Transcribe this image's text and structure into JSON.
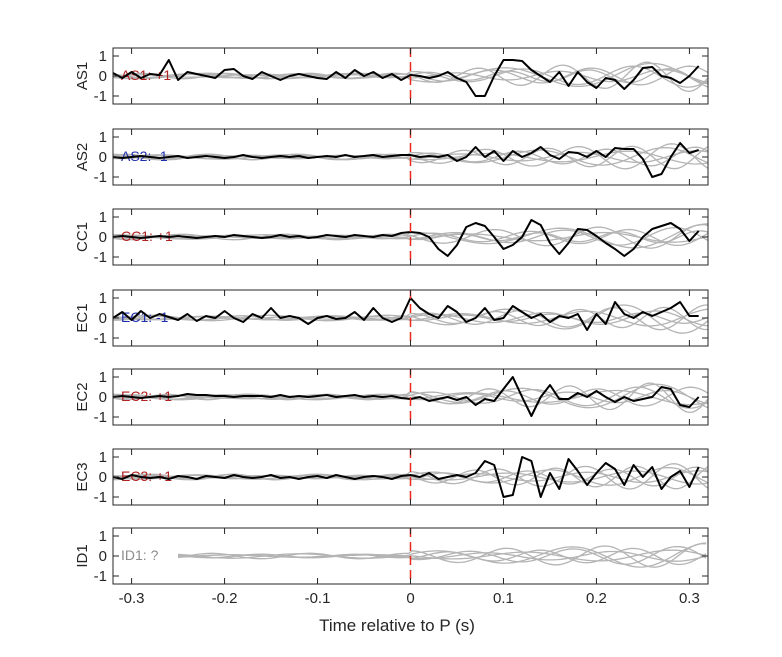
{
  "chart_data": {
    "type": "line",
    "xlabel": "Time relative to P (s)",
    "xlim": [
      -0.32,
      0.32
    ],
    "xticks": [
      -0.3,
      -0.2,
      -0.1,
      0,
      0.1,
      0.2,
      0.3
    ],
    "xtick_labels": [
      "-0.3",
      "-0.2",
      "-0.1",
      "0",
      "0.1",
      "0.2",
      "0.3"
    ],
    "ylim": [
      -1.4,
      1.4
    ],
    "yticks": [
      1,
      0,
      -1
    ],
    "ytick_labels": [
      "1",
      "0",
      "-1"
    ],
    "marker_line": {
      "x": 0,
      "color": "#e8291c",
      "style": "dashed"
    },
    "colors": {
      "highlight": "#000000",
      "background": "#b4b4b4",
      "positive": "#b22222",
      "negative": "#1f2fb0",
      "unknown": "#8c8c8c"
    },
    "panels": [
      {
        "ylabel": "AS1",
        "annotation": "AS1: +1",
        "annotation_color": "#b22222",
        "x": [
          -0.32,
          -0.31,
          -0.3,
          -0.29,
          -0.28,
          -0.27,
          -0.26,
          -0.25,
          -0.24,
          -0.23,
          -0.22,
          -0.21,
          -0.2,
          -0.19,
          -0.18,
          -0.17,
          -0.16,
          -0.15,
          -0.14,
          -0.13,
          -0.12,
          -0.11,
          -0.1,
          -0.09,
          -0.08,
          -0.07,
          -0.06,
          -0.05,
          -0.04,
          -0.03,
          -0.02,
          -0.01,
          0,
          0.01,
          0.02,
          0.03,
          0.04,
          0.05,
          0.06,
          0.07,
          0.08,
          0.09,
          0.1,
          0.11,
          0.12,
          0.13,
          0.14,
          0.15,
          0.16,
          0.17,
          0.18,
          0.19,
          0.2,
          0.21,
          0.22,
          0.23,
          0.24,
          0.25,
          0.26,
          0.27,
          0.28,
          0.29,
          0.3,
          0.31
        ],
        "y": [
          0.15,
          -0.1,
          0.2,
          -0.1,
          0.1,
          0.05,
          0.8,
          -0.2,
          0.2,
          0.1,
          0.0,
          -0.1,
          0.3,
          0.35,
          0.0,
          -0.15,
          0.2,
          0.0,
          -0.2,
          0.0,
          0.1,
          0.0,
          -0.1,
          -0.15,
          0.2,
          -0.1,
          0.3,
          0.0,
          0.2,
          -0.1,
          0.1,
          -0.2,
          0.05,
          0.0,
          -0.1,
          0.0,
          0.2,
          -0.1,
          -0.3,
          -1.0,
          -1.0,
          0.0,
          0.8,
          0.8,
          0.75,
          0.3,
          0.0,
          -0.3,
          0.2,
          -0.5,
          0.2,
          -0.3,
          -0.6,
          -0.1,
          -0.2,
          -0.65,
          -0.2,
          0.4,
          0.45,
          0.0,
          -0.1,
          -0.35,
          0.0,
          0.5
        ]
      },
      {
        "ylabel": "AS2",
        "annotation": "AS2: -1",
        "annotation_color": "#1f2fb0",
        "x": [
          -0.32,
          -0.31,
          -0.3,
          -0.29,
          -0.28,
          -0.27,
          -0.26,
          -0.25,
          -0.24,
          -0.23,
          -0.22,
          -0.21,
          -0.2,
          -0.19,
          -0.18,
          -0.17,
          -0.16,
          -0.15,
          -0.14,
          -0.13,
          -0.12,
          -0.11,
          -0.1,
          -0.09,
          -0.08,
          -0.07,
          -0.06,
          -0.05,
          -0.04,
          -0.03,
          -0.02,
          -0.01,
          0,
          0.01,
          0.02,
          0.03,
          0.04,
          0.05,
          0.06,
          0.07,
          0.08,
          0.09,
          0.1,
          0.11,
          0.12,
          0.13,
          0.14,
          0.15,
          0.16,
          0.17,
          0.18,
          0.19,
          0.2,
          0.21,
          0.22,
          0.23,
          0.24,
          0.25,
          0.26,
          0.27,
          0.28,
          0.29,
          0.3,
          0.31
        ],
        "y": [
          0.0,
          -0.05,
          0.0,
          0.05,
          0.0,
          -0.05,
          0.0,
          0.05,
          -0.05,
          0.0,
          0.05,
          0.0,
          -0.05,
          0.0,
          0.1,
          0.0,
          -0.05,
          0.0,
          0.05,
          0.0,
          0.05,
          -0.05,
          0.0,
          0.05,
          0.0,
          0.1,
          0.0,
          0.05,
          0.1,
          0.0,
          0.05,
          0.1,
          0.1,
          0.0,
          0.05,
          0.0,
          0.1,
          -0.2,
          0.0,
          0.5,
          0.0,
          0.3,
          -0.2,
          0.3,
          0.0,
          0.2,
          0.5,
          0.1,
          -0.1,
          0.25,
          0.2,
          0.0,
          0.3,
          0.0,
          0.45,
          0.4,
          0.4,
          -0.1,
          -1.0,
          -0.85,
          0.0,
          0.7,
          0.2,
          0.35
        ]
      },
      {
        "ylabel": "CC1",
        "annotation": "CC1: +1",
        "annotation_color": "#b22222",
        "x": [
          -0.32,
          -0.31,
          -0.3,
          -0.29,
          -0.28,
          -0.27,
          -0.26,
          -0.25,
          -0.24,
          -0.23,
          -0.22,
          -0.21,
          -0.2,
          -0.19,
          -0.18,
          -0.17,
          -0.16,
          -0.15,
          -0.14,
          -0.13,
          -0.12,
          -0.11,
          -0.1,
          -0.09,
          -0.08,
          -0.07,
          -0.06,
          -0.05,
          -0.04,
          -0.03,
          -0.02,
          -0.01,
          0,
          0.01,
          0.02,
          0.03,
          0.04,
          0.05,
          0.06,
          0.07,
          0.08,
          0.09,
          0.1,
          0.11,
          0.12,
          0.13,
          0.14,
          0.15,
          0.16,
          0.17,
          0.18,
          0.19,
          0.2,
          0.21,
          0.22,
          0.23,
          0.24,
          0.25,
          0.26,
          0.27,
          0.28,
          0.29,
          0.3,
          0.31
        ],
        "y": [
          0.0,
          0.05,
          0.0,
          -0.05,
          0.0,
          0.05,
          0.0,
          0.05,
          0.0,
          -0.05,
          0.0,
          0.05,
          0.0,
          0.1,
          0.05,
          0.0,
          -0.05,
          0.0,
          0.1,
          0.0,
          0.05,
          -0.05,
          0.0,
          0.1,
          0.05,
          0.0,
          0.1,
          0.05,
          0.0,
          0.1,
          0.05,
          0.2,
          0.25,
          0.2,
          0.0,
          -0.6,
          -0.95,
          -0.4,
          0.5,
          0.7,
          0.55,
          0.0,
          -0.6,
          -0.4,
          0.0,
          0.85,
          0.6,
          -0.3,
          -0.85,
          -0.3,
          0.4,
          0.35,
          0.05,
          -0.3,
          -0.6,
          -0.95,
          -0.6,
          0.0,
          0.4,
          0.55,
          0.7,
          0.4,
          -0.2,
          0.3
        ]
      },
      {
        "ylabel": "EC1",
        "annotation": "EC1: -1",
        "annotation_color": "#1f2fb0",
        "x": [
          -0.32,
          -0.31,
          -0.3,
          -0.29,
          -0.28,
          -0.27,
          -0.26,
          -0.25,
          -0.24,
          -0.23,
          -0.22,
          -0.21,
          -0.2,
          -0.19,
          -0.18,
          -0.17,
          -0.16,
          -0.15,
          -0.14,
          -0.13,
          -0.12,
          -0.11,
          -0.1,
          -0.09,
          -0.08,
          -0.07,
          -0.06,
          -0.05,
          -0.04,
          -0.03,
          -0.02,
          -0.01,
          0,
          0.01,
          0.02,
          0.03,
          0.04,
          0.05,
          0.06,
          0.07,
          0.08,
          0.09,
          0.1,
          0.11,
          0.12,
          0.13,
          0.14,
          0.15,
          0.16,
          0.17,
          0.18,
          0.19,
          0.2,
          0.21,
          0.22,
          0.23,
          0.24,
          0.25,
          0.26,
          0.27,
          0.28,
          0.29,
          0.3,
          0.31
        ],
        "y": [
          0.0,
          0.3,
          -0.1,
          0.35,
          0.0,
          0.2,
          0.05,
          -0.1,
          0.2,
          -0.15,
          0.1,
          0.0,
          0.35,
          0.0,
          -0.2,
          0.2,
          0.0,
          0.5,
          0.0,
          0.1,
          0.0,
          -0.3,
          0.0,
          0.1,
          -0.05,
          0.0,
          0.3,
          -0.1,
          0.5,
          0.0,
          -0.2,
          0.0,
          1.0,
          0.5,
          0.2,
          0.0,
          0.6,
          0.3,
          -0.2,
          0.0,
          0.5,
          -0.1,
          0.0,
          0.6,
          0.3,
          0.0,
          0.2,
          -0.2,
          0.1,
          0.0,
          0.2,
          -0.6,
          0.2,
          -0.3,
          0.8,
          0.2,
          0.0,
          0.3,
          0.1,
          0.3,
          0.5,
          0.8,
          0.1,
          0.1
        ]
      },
      {
        "ylabel": "EC2",
        "annotation": "EC2: +1",
        "annotation_color": "#b22222",
        "x": [
          -0.32,
          -0.31,
          -0.3,
          -0.29,
          -0.28,
          -0.27,
          -0.26,
          -0.25,
          -0.24,
          -0.23,
          -0.22,
          -0.21,
          -0.2,
          -0.19,
          -0.18,
          -0.17,
          -0.16,
          -0.15,
          -0.14,
          -0.13,
          -0.12,
          -0.11,
          -0.1,
          -0.09,
          -0.08,
          -0.07,
          -0.06,
          -0.05,
          -0.04,
          -0.03,
          -0.02,
          -0.01,
          0,
          0.01,
          0.02,
          0.03,
          0.04,
          0.05,
          0.06,
          0.07,
          0.08,
          0.09,
          0.1,
          0.11,
          0.12,
          0.13,
          0.14,
          0.15,
          0.16,
          0.17,
          0.18,
          0.19,
          0.2,
          0.21,
          0.22,
          0.23,
          0.24,
          0.25,
          0.26,
          0.27,
          0.28,
          0.29,
          0.3,
          0.31
        ],
        "y": [
          0.0,
          0.05,
          0.0,
          -0.05,
          0.0,
          0.05,
          0.0,
          0.05,
          0.15,
          0.1,
          0.1,
          0.05,
          0.05,
          0.0,
          0.05,
          0.05,
          0.05,
          0.0,
          0.1,
          0.0,
          0.05,
          0.0,
          0.05,
          0.1,
          0.0,
          0.05,
          0.1,
          0.0,
          0.05,
          0.0,
          0.05,
          -0.05,
          -0.1,
          0.0,
          -0.2,
          -0.1,
          0.0,
          -0.15,
          0.0,
          -0.4,
          -0.1,
          -0.2,
          0.4,
          1.0,
          0.0,
          -0.95,
          0.0,
          0.6,
          -0.1,
          -0.1,
          0.2,
          0.0,
          0.3,
          0.0,
          -0.25,
          0.0,
          -0.2,
          -0.1,
          0.0,
          0.5,
          0.4,
          -0.4,
          -0.5,
          0.0
        ]
      },
      {
        "ylabel": "EC3",
        "annotation": "EC3: +1",
        "annotation_color": "#b22222",
        "x": [
          -0.32,
          -0.31,
          -0.3,
          -0.29,
          -0.28,
          -0.27,
          -0.26,
          -0.25,
          -0.24,
          -0.23,
          -0.22,
          -0.21,
          -0.2,
          -0.19,
          -0.18,
          -0.17,
          -0.16,
          -0.15,
          -0.14,
          -0.13,
          -0.12,
          -0.11,
          -0.1,
          -0.09,
          -0.08,
          -0.07,
          -0.06,
          -0.05,
          -0.04,
          -0.03,
          -0.02,
          -0.01,
          0,
          0.01,
          0.02,
          0.03,
          0.04,
          0.05,
          0.06,
          0.07,
          0.08,
          0.09,
          0.1,
          0.11,
          0.12,
          0.13,
          0.14,
          0.15,
          0.16,
          0.17,
          0.18,
          0.19,
          0.2,
          0.21,
          0.22,
          0.23,
          0.24,
          0.25,
          0.26,
          0.27,
          0.28,
          0.29,
          0.3,
          0.31
        ],
        "y": [
          0.0,
          -0.1,
          0.1,
          0.0,
          -0.05,
          0.0,
          -0.1,
          0.05,
          0.0,
          -0.1,
          0.05,
          0.0,
          -0.05,
          0.1,
          0.0,
          -0.05,
          0.0,
          0.1,
          -0.05,
          0.0,
          -0.1,
          0.0,
          0.05,
          -0.05,
          0.1,
          0.0,
          -0.1,
          0.0,
          0.05,
          0.0,
          -0.1,
          0.05,
          0.1,
          0.0,
          0.2,
          -0.1,
          0.0,
          0.1,
          0.0,
          0.2,
          0.8,
          0.6,
          -1.0,
          -0.9,
          1.0,
          0.8,
          -1.0,
          0.2,
          -0.6,
          0.9,
          0.3,
          -0.4,
          0.2,
          0.7,
          0.4,
          -0.4,
          0.6,
          0.0,
          0.5,
          -0.6,
          0.0,
          0.3,
          -0.5,
          0.5
        ]
      },
      {
        "ylabel": "ID1",
        "annotation": "ID1: ?",
        "annotation_color": "#8c8c8c",
        "x": [],
        "y": []
      }
    ]
  }
}
